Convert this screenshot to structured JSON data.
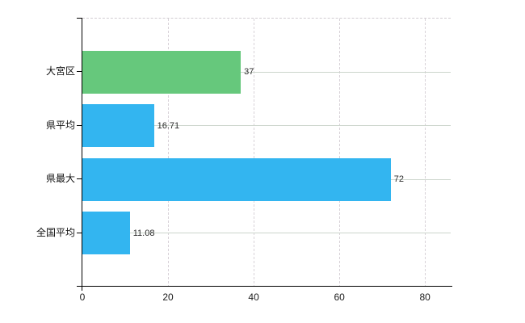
{
  "chart_data": {
    "type": "bar",
    "orientation": "horizontal",
    "title": "",
    "categories": [
      "大宮区",
      "県平均",
      "県最大",
      "全国平均"
    ],
    "values": [
      37,
      16.71,
      72,
      11.08
    ],
    "value_labels": [
      "37",
      "16.71",
      "72",
      "11.08"
    ],
    "bar_colors": [
      "#66c87c",
      "#33b5f0",
      "#33b5f0",
      "#33b5f0"
    ],
    "x_ticks": [
      0,
      20,
      40,
      60,
      80
    ],
    "x_tick_labels": [
      "0",
      "20",
      "40",
      "60",
      "80"
    ],
    "xlim": [
      0,
      86
    ],
    "grid": true,
    "legend": "none",
    "background_color": "#ffffff",
    "axis_color": "#000000",
    "h_gridline_color": "#ccd5cc",
    "v_gridline_color": "#d8d2d8",
    "top_border_style": "dashed"
  }
}
